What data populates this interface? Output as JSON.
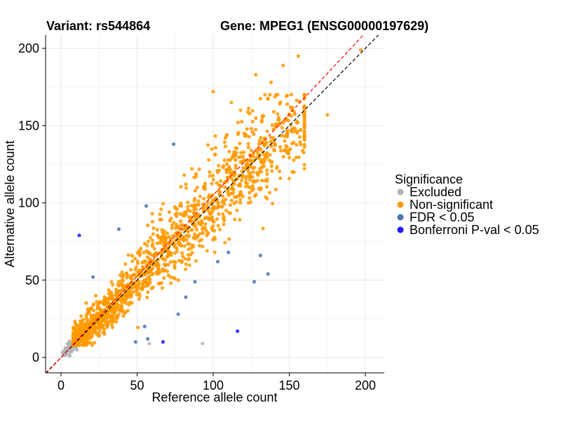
{
  "chart_data": {
    "type": "scatter",
    "title_left": "Variant: rs544864",
    "title_right": "Gene: MPEG1 (ENSG00000197629)",
    "xlabel": "Reference allele count",
    "ylabel": "Alternative allele count",
    "xlim": [
      -10,
      210
    ],
    "ylim": [
      -10,
      210
    ],
    "x_ticks": [
      0,
      50,
      100,
      150,
      200
    ],
    "y_ticks": [
      0,
      50,
      100,
      150,
      200
    ],
    "grid": true,
    "legend": {
      "title": "Significance",
      "placement": "right",
      "entries": [
        {
          "label": "Excluded",
          "color": "#b3b3b3"
        },
        {
          "label": "Non-significant",
          "color": "#ff9900"
        },
        {
          "label": "FDR < 0.05",
          "color": "#4a74b0"
        },
        {
          "label": "Bonferroni P-val < 0.05",
          "color": "#1a1aff"
        }
      ]
    },
    "reference_lines": [
      {
        "slope": 1.0,
        "intercept": 0,
        "color": "#000000",
        "style": "dashed"
      },
      {
        "slope": 1.05,
        "intercept": 0,
        "color": "#ff0000",
        "style": "dashed"
      }
    ],
    "series": [
      {
        "name": "Excluded",
        "color": "#b3b3b3",
        "cluster": {
          "count": 90,
          "x_range": [
            1,
            18
          ],
          "y_range": [
            1,
            20
          ]
        },
        "points": [
          [
            58,
            9
          ],
          [
            93,
            9
          ]
        ]
      },
      {
        "name": "Non-significant",
        "color": "#ff9900",
        "cluster": {
          "count": 1500,
          "x_range": [
            8,
            160
          ],
          "y_range": [
            8,
            160
          ],
          "slope": 1.0
        },
        "points": [
          [
            197,
            199
          ],
          [
            156,
            195
          ],
          [
            146,
            189
          ],
          [
            138,
            178
          ],
          [
            134,
            170
          ],
          [
            128,
            183
          ],
          [
            118,
            160
          ],
          [
            112,
            165
          ],
          [
            100,
            172
          ],
          [
            175,
            157
          ],
          [
            160,
            150
          ],
          [
            152,
            146
          ],
          [
            108,
            142
          ],
          [
            125,
            148
          ],
          [
            81,
            118
          ],
          [
            60,
            93
          ]
        ]
      },
      {
        "name": "FDR < 0.05",
        "color": "#4a74b0",
        "points": [
          [
            74,
            138
          ],
          [
            56,
            98
          ],
          [
            38,
            83
          ],
          [
            21,
            52
          ],
          [
            103,
            62
          ],
          [
            110,
            68
          ],
          [
            131,
            66
          ],
          [
            136,
            54
          ],
          [
            127,
            49
          ],
          [
            88,
            49
          ],
          [
            82,
            39
          ],
          [
            77,
            28
          ],
          [
            55,
            20
          ],
          [
            57,
            12
          ],
          [
            49,
            10
          ]
        ]
      },
      {
        "name": "Bonferroni P-val < 0.05",
        "color": "#1a1aff",
        "points": [
          [
            12,
            79
          ],
          [
            67,
            10
          ],
          [
            116,
            17
          ]
        ]
      }
    ]
  }
}
